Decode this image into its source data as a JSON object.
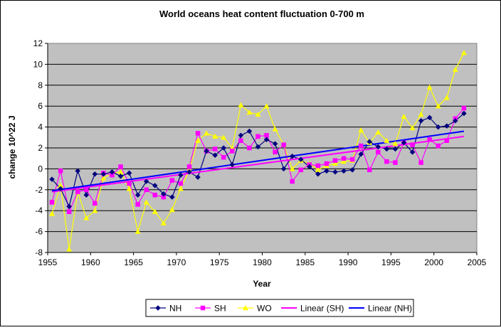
{
  "chart_data": {
    "type": "line",
    "title": "World oceans heat content fluctuation 0-700 m",
    "xlabel": "Year",
    "ylabel": "change 10^22 J",
    "xlim": [
      1955,
      2005
    ],
    "ylim": [
      -8,
      12
    ],
    "xticks": [
      1955,
      1960,
      1965,
      1970,
      1975,
      1980,
      1985,
      1990,
      1995,
      2000,
      2005
    ],
    "yticks": [
      -8,
      -6,
      -4,
      -2,
      0,
      2,
      4,
      6,
      8,
      10,
      12
    ],
    "grid": "horizontal",
    "legend_position": "bottom",
    "x": [
      1955.5,
      1956.5,
      1957.5,
      1958.5,
      1959.5,
      1960.5,
      1961.5,
      1962.5,
      1963.5,
      1964.5,
      1965.5,
      1966.5,
      1967.5,
      1968.5,
      1969.5,
      1970.5,
      1971.5,
      1972.5,
      1973.5,
      1974.5,
      1975.5,
      1976.5,
      1977.5,
      1978.5,
      1979.5,
      1980.5,
      1981.5,
      1982.5,
      1983.5,
      1984.5,
      1985.5,
      1986.5,
      1987.5,
      1988.5,
      1989.5,
      1990.5,
      1991.5,
      1992.5,
      1993.5,
      1994.5,
      1995.5,
      1996.5,
      1997.5,
      1998.5,
      1999.5,
      2000.5,
      2001.5,
      2002.5,
      2003.5
    ],
    "series": [
      {
        "name": "NH",
        "color": "#000080",
        "marker": "diamond",
        "values": [
          -1.0,
          -1.9,
          -3.6,
          -0.2,
          -2.5,
          -0.5,
          -0.5,
          -0.3,
          -0.7,
          -0.4,
          -2.5,
          -1.2,
          -1.6,
          -2.4,
          -2.7,
          -0.6,
          -0.3,
          -0.8,
          1.7,
          1.3,
          2.0,
          0.4,
          3.2,
          3.6,
          2.1,
          2.8,
          2.4,
          0.0,
          1.2,
          0.9,
          0.2,
          -0.5,
          -0.2,
          -0.3,
          -0.2,
          -0.1,
          1.4,
          2.6,
          2.1,
          1.9,
          1.9,
          2.5,
          1.6,
          4.6,
          4.9,
          4.0,
          4.1,
          4.6,
          5.3
        ]
      },
      {
        "name": "SH",
        "color": "#ff00ff",
        "marker": "square",
        "values": [
          -3.2,
          -0.2,
          -4.1,
          -2.2,
          -2.0,
          -3.3,
          -0.4,
          -0.6,
          0.2,
          -1.4,
          -3.4,
          -2.0,
          -2.5,
          -2.7,
          -1.1,
          -1.4,
          0.2,
          3.4,
          1.7,
          1.9,
          1.1,
          1.7,
          2.7,
          2.0,
          3.1,
          3.2,
          1.6,
          2.3,
          -1.2,
          -0.1,
          0.4,
          0.3,
          0.5,
          0.8,
          1.0,
          0.9,
          2.2,
          -0.1,
          1.6,
          0.7,
          0.6,
          2.5,
          2.3,
          0.6,
          2.8,
          2.2,
          2.7,
          4.8,
          5.8
        ]
      },
      {
        "name": "WO",
        "color": "#ffff00",
        "marker": "triangle",
        "values": [
          -4.3,
          -1.6,
          -7.7,
          -2.2,
          -4.7,
          -4.0,
          -0.9,
          -0.4,
          -0.3,
          -1.9,
          -6.0,
          -3.2,
          -4.1,
          -5.2,
          -3.9,
          -1.9,
          -0.1,
          2.7,
          3.4,
          3.1,
          3.0,
          2.0,
          6.1,
          5.4,
          5.2,
          6.0,
          3.8,
          2.3,
          0.0,
          0.8,
          0.5,
          -0.1,
          0.3,
          0.5,
          0.7,
          0.8,
          3.7,
          2.5,
          3.5,
          2.7,
          2.4,
          5.0,
          3.9,
          5.2,
          7.8,
          6.0,
          6.8,
          9.5,
          11.1
        ]
      }
    ],
    "trendlines": [
      {
        "name": "Linear (SH)",
        "color": "#ff00ff",
        "x": [
          1955.5,
          2003.5
        ],
        "y": [
          -2.2,
          3.1
        ]
      },
      {
        "name": "Linear (NH)",
        "color": "#0000ff",
        "x": [
          1955.5,
          2003.5
        ],
        "y": [
          -2.1,
          3.6
        ]
      }
    ]
  }
}
